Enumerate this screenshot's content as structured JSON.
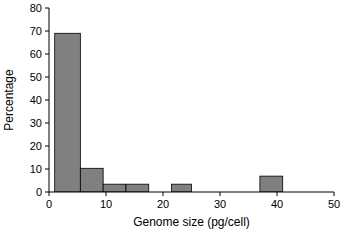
{
  "chart_data": {
    "type": "histogram",
    "x_label": "Genome size (pg/cell)",
    "y_label": "Percentage",
    "bins": [
      1,
      5.5,
      9.5,
      13.5,
      17.5,
      21.5,
      25,
      29,
      33,
      37,
      41
    ],
    "values": [
      69,
      10.3,
      3.4,
      3.4,
      0,
      3.4,
      0,
      0,
      0,
      6.9
    ],
    "color": "#808080",
    "xlim": [
      0,
      50
    ],
    "xticks": [
      0,
      10,
      20,
      30,
      40,
      50
    ],
    "ylim": [
      0,
      80
    ],
    "yticks": [
      0,
      10,
      20,
      30,
      40,
      50,
      60,
      70,
      80
    ],
    "grid": false
  }
}
